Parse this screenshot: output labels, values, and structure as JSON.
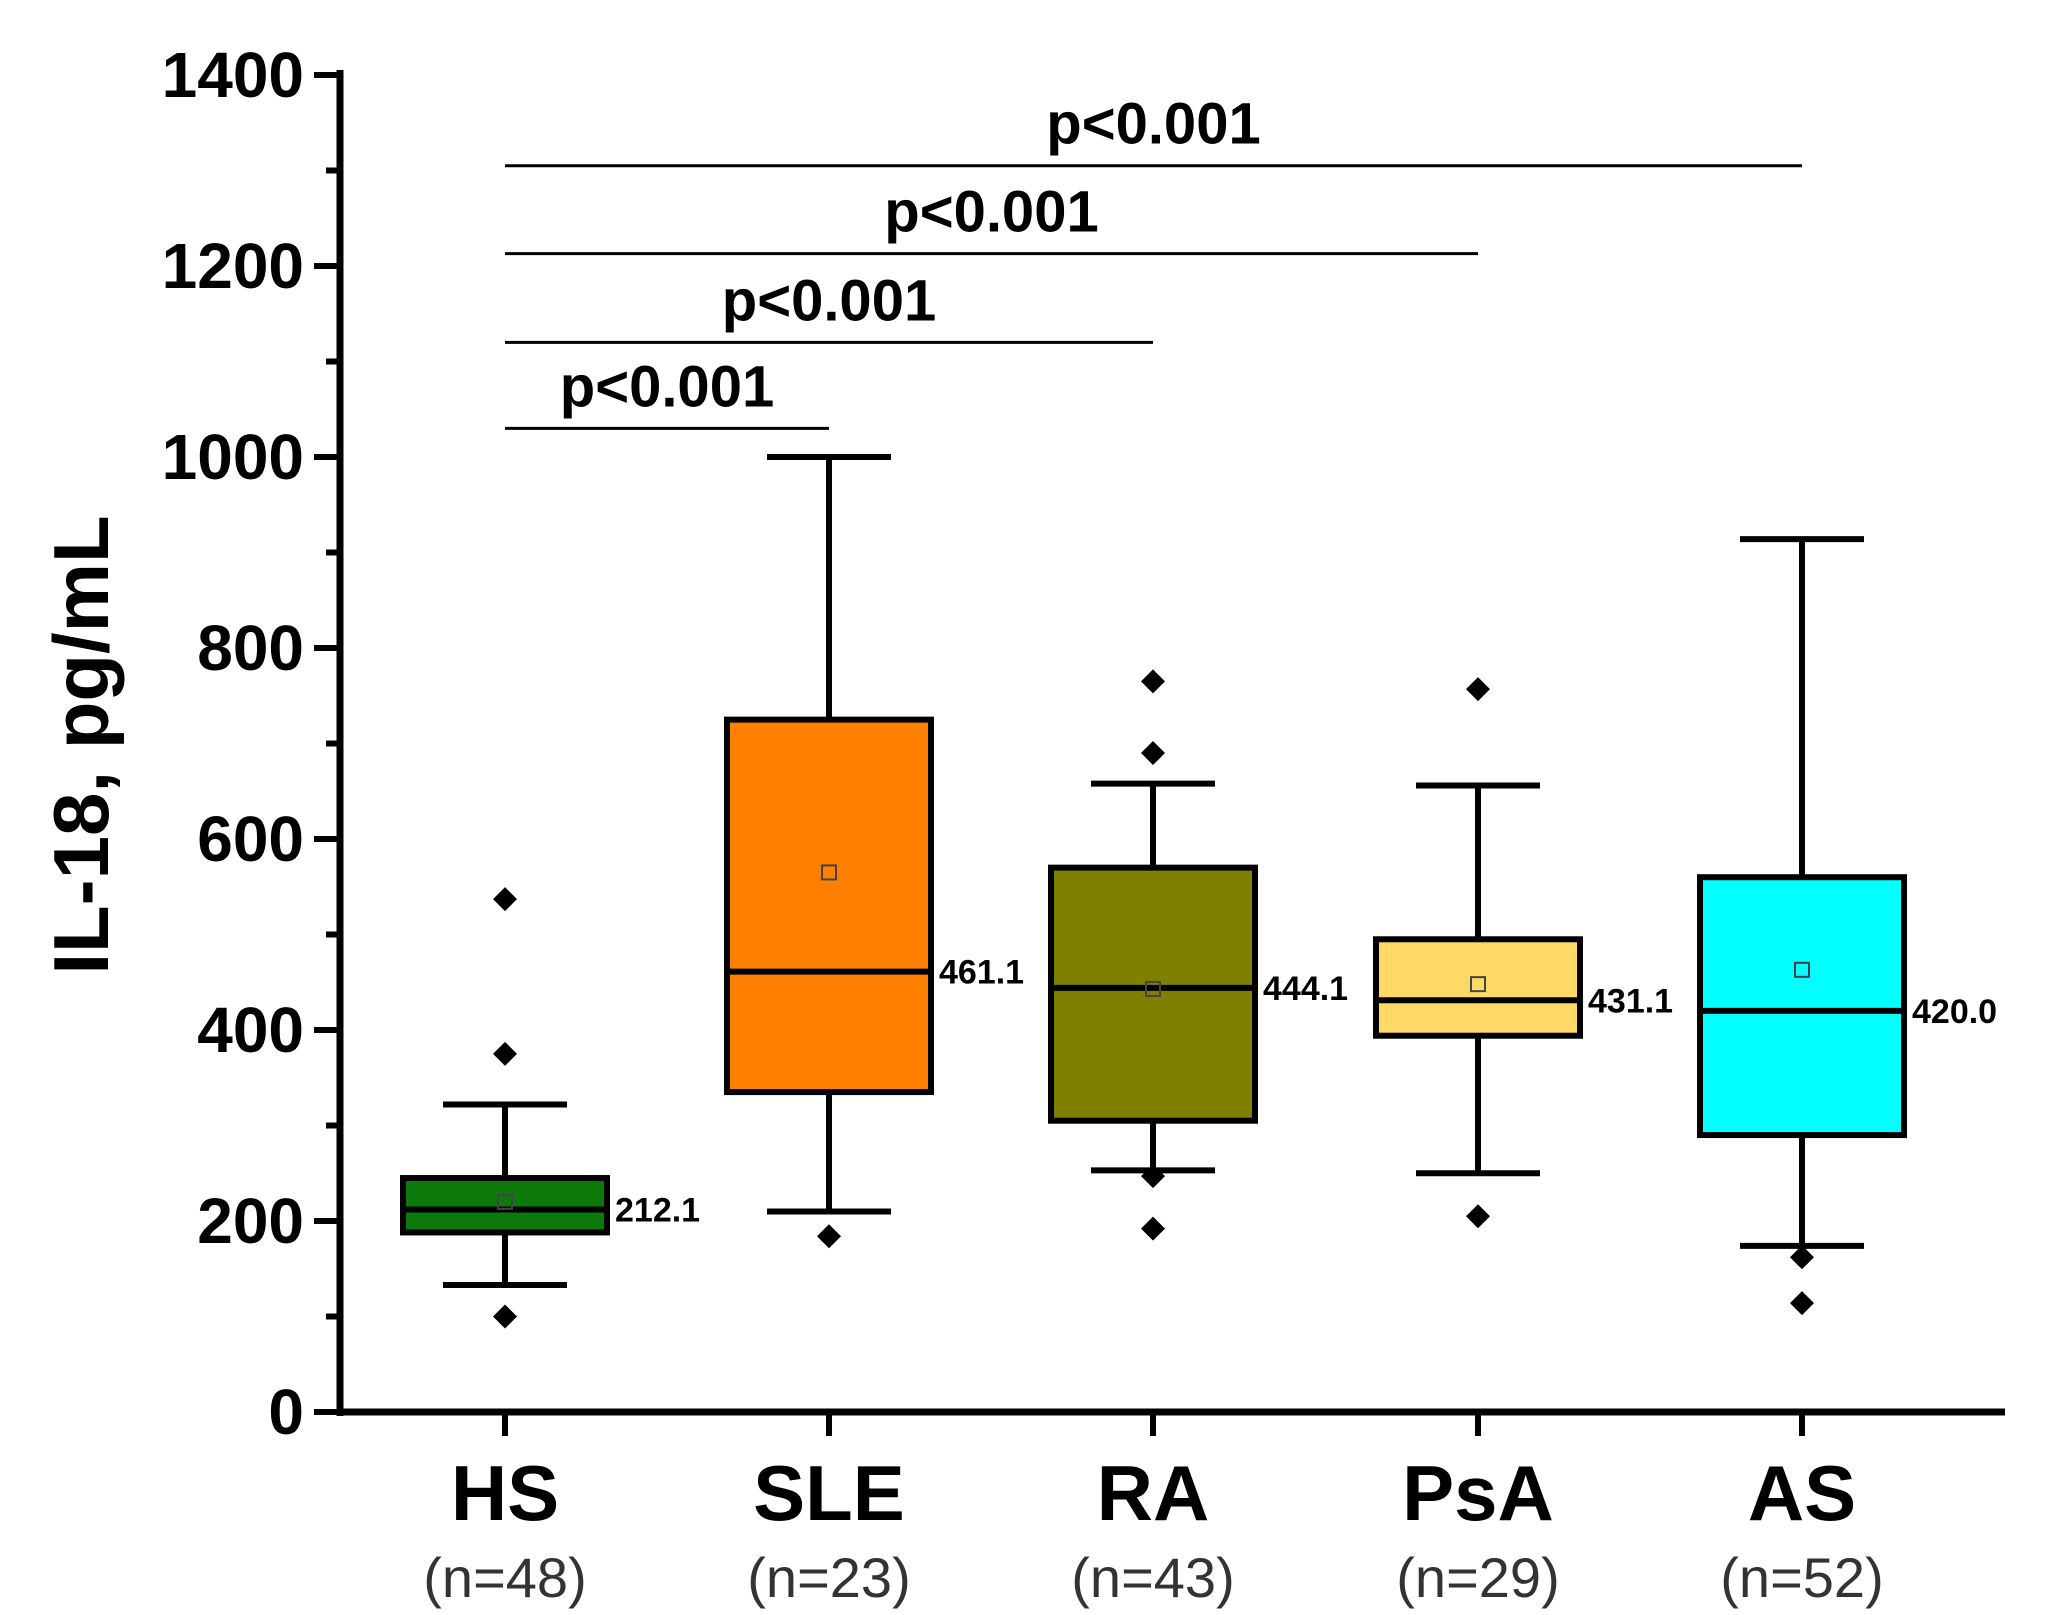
{
  "chart_data": {
    "type": "box",
    "title": "",
    "xlabel": "",
    "ylabel": "IL-18, pg/mL",
    "ylim": [
      0,
      1400
    ],
    "yticks": [
      0,
      200,
      400,
      600,
      800,
      1000,
      1200,
      1400
    ],
    "yticks_text": [
      "0",
      "200",
      "400",
      "600",
      "800",
      "1000",
      "1200",
      "1400"
    ],
    "grid": false,
    "groups": [
      {
        "name": "HS",
        "n_label": "(n=48)",
        "color": "#0b7a0b",
        "whisker_low": 133,
        "q1": 188,
        "median": 212.1,
        "q3": 245,
        "whisker_high": 322,
        "mean": 220,
        "outliers": [
          100,
          375,
          537
        ],
        "median_label": "212.1"
      },
      {
        "name": "SLE",
        "n_label": "(n=23)",
        "color": "#ff8000",
        "whisker_low": 210,
        "q1": 335,
        "median": 461.1,
        "q3": 725,
        "whisker_high": 1000,
        "mean": 565,
        "outliers": [
          184
        ],
        "median_label": "461.1"
      },
      {
        "name": "RA",
        "n_label": "(n=43)",
        "color": "#808000",
        "whisker_low": 253,
        "q1": 305,
        "median": 444.1,
        "q3": 570,
        "whisker_high": 658,
        "mean": 443,
        "outliers": [
          192,
          247,
          690,
          765
        ],
        "median_label": "444.1"
      },
      {
        "name": "PsA",
        "n_label": "(n=29)",
        "color": "#ffd966",
        "whisker_low": 250,
        "q1": 394,
        "median": 431.1,
        "q3": 495,
        "whisker_high": 656,
        "mean": 448,
        "outliers": [
          205,
          757
        ],
        "median_label": "431.1"
      },
      {
        "name": "AS",
        "n_label": "(n=52)",
        "color": "#00ffff",
        "whisker_low": 174,
        "q1": 290,
        "median": 420.0,
        "q3": 560,
        "whisker_high": 914,
        "mean": 463,
        "outliers": [
          114,
          162
        ],
        "median_label": "420.0"
      }
    ],
    "annotations": [
      {
        "from": 0,
        "to": 1,
        "y": 1030,
        "label": "p<0.001"
      },
      {
        "from": 0,
        "to": 2,
        "y": 1120,
        "label": "p<0.001"
      },
      {
        "from": 0,
        "to": 3,
        "y": 1213,
        "label": "p<0.001"
      },
      {
        "from": 0,
        "to": 4,
        "y": 1305,
        "label": "p<0.001"
      }
    ]
  }
}
